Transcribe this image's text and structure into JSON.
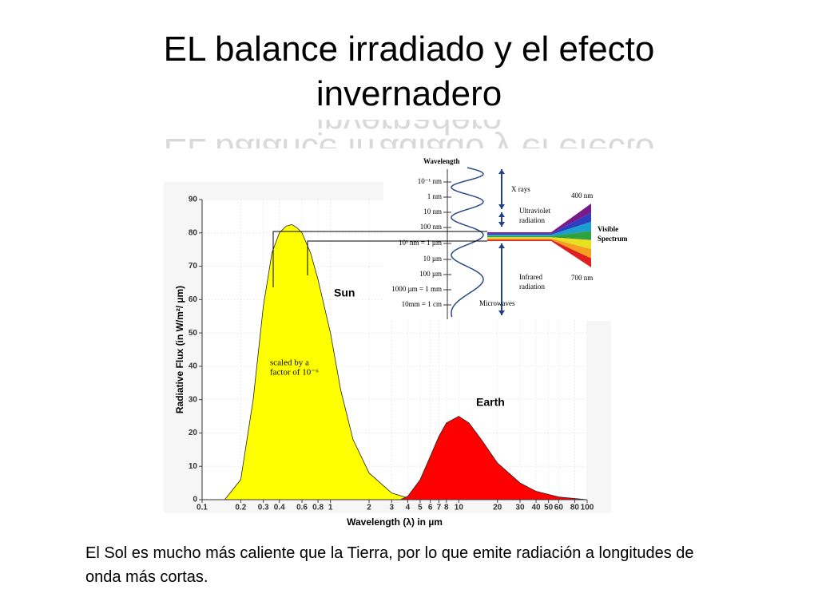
{
  "title": "EL balance irradiado y el efecto invernadero",
  "chart_data": {
    "type": "area",
    "xlabel": "Wavelength (λ) in µm",
    "ylabel": "Radiative Flux (in W/m²/ µm)",
    "xscale": "log",
    "xlim": [
      0.1,
      100
    ],
    "ylim": [
      0,
      90
    ],
    "xticks": [
      0.1,
      0.2,
      0.3,
      0.4,
      0.6,
      0.8,
      1,
      2,
      3,
      4,
      5,
      6,
      7,
      8,
      10,
      20,
      30,
      40,
      50,
      60,
      80,
      100
    ],
    "yticks": [
      0,
      10,
      20,
      30,
      40,
      50,
      60,
      70,
      80,
      90
    ],
    "grid": true,
    "series": [
      {
        "name": "Sun",
        "color": "#ffff00",
        "x": [
          0.15,
          0.2,
          0.25,
          0.3,
          0.35,
          0.4,
          0.45,
          0.5,
          0.55,
          0.6,
          0.7,
          0.8,
          1,
          1.2,
          1.5,
          2,
          3,
          4,
          5
        ],
        "values": [
          0,
          6,
          30,
          58,
          74,
          80,
          82,
          82.5,
          81.5,
          80,
          74,
          66,
          50,
          33,
          18,
          8,
          2,
          0.5,
          0
        ]
      },
      {
        "name": "Earth",
        "color": "#ff0000",
        "x": [
          3.5,
          4,
          5,
          6,
          7,
          8,
          10,
          12,
          15,
          20,
          30,
          40,
          60,
          100
        ],
        "values": [
          0,
          1,
          6,
          13,
          19,
          23,
          25,
          23,
          18,
          11,
          5,
          2.5,
          0.8,
          0
        ]
      }
    ],
    "annotations": [
      "scaled by a",
      "factor of 10⁻⁶"
    ]
  },
  "inset": {
    "title": "Wavelength",
    "scale": [
      "10⁻¹ nm",
      "1 nm",
      "10 nm",
      "100 nm",
      "10³ nm = 1 µm",
      "10 µm",
      "100 µm",
      "1000 µm = 1 mm",
      "10mm = 1 cm"
    ],
    "bands": [
      "X rays",
      "Ultraviolet",
      "radiation",
      "Infrared",
      "radiation",
      "Microwaves"
    ],
    "visible": [
      "400 nm",
      "700 nm",
      "Visible",
      "Spectrum"
    ]
  },
  "caption": "El Sol es mucho más caliente que la Tierra, por lo que emite radiación a longitudes de onda más cortas."
}
